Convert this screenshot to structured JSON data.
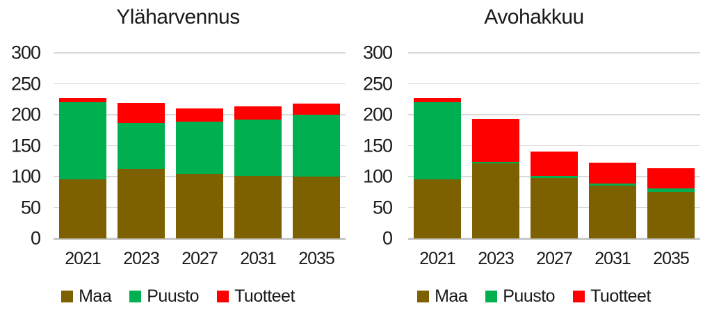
{
  "figure": {
    "background": "#FFFFFF",
    "text_color": "#1A1A1A",
    "gridline_color": "#D9D9D9",
    "axis_line_color": "#C9C9C9"
  },
  "chart_data": [
    {
      "type": "bar",
      "stacked": true,
      "title": "Yläharvennus",
      "categories": [
        "2021",
        "2023",
        "2027",
        "2031",
        "2035"
      ],
      "series": [
        {
          "name": "Maa",
          "color": "#7D6000",
          "values": [
            95,
            112,
            105,
            101,
            100
          ]
        },
        {
          "name": "Puusto",
          "color": "#00B050",
          "values": [
            125,
            74,
            84,
            91,
            100
          ]
        },
        {
          "name": "Tuotteet",
          "color": "#FF0000",
          "values": [
            7,
            33,
            21,
            21,
            18
          ]
        }
      ],
      "ylim": [
        0,
        300
      ],
      "y_ticks": [
        0,
        50,
        100,
        150,
        200,
        250,
        300
      ],
      "grid": true,
      "legend_position": "bottom"
    },
    {
      "type": "bar",
      "stacked": true,
      "title": "Avohakkuu",
      "categories": [
        "2021",
        "2023",
        "2027",
        "2031",
        "2035"
      ],
      "series": [
        {
          "name": "Maa",
          "color": "#7D6000",
          "values": [
            95,
            121,
            98,
            85,
            75
          ]
        },
        {
          "name": "Puusto",
          "color": "#00B050",
          "values": [
            125,
            3,
            3,
            4,
            6
          ]
        },
        {
          "name": "Tuotteet",
          "color": "#FF0000",
          "values": [
            7,
            69,
            40,
            34,
            33
          ]
        }
      ],
      "ylim": [
        0,
        300
      ],
      "y_ticks": [
        0,
        50,
        100,
        150,
        200,
        250,
        300
      ],
      "grid": true,
      "legend_position": "bottom"
    }
  ]
}
